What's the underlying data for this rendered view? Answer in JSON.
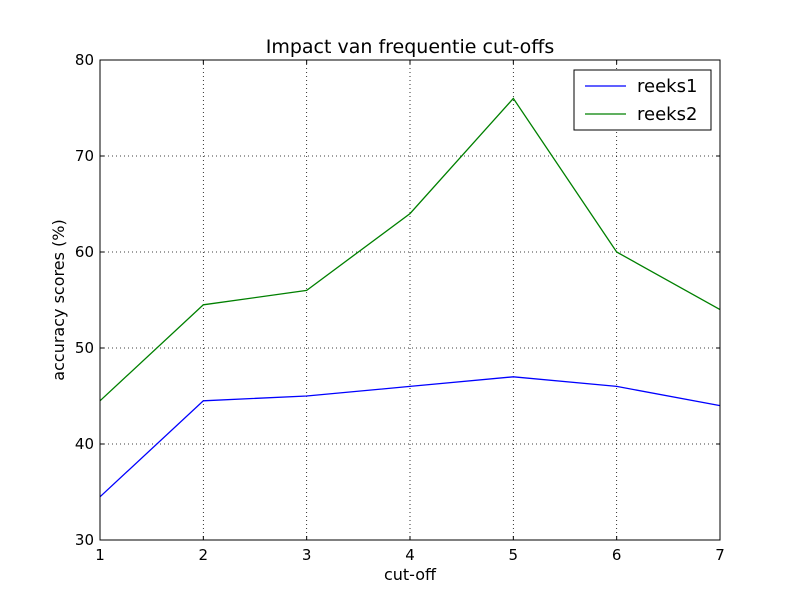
{
  "chart_data": {
    "type": "line",
    "title": "Impact van frequentie cut-offs",
    "xlabel": "cut-off",
    "ylabel": "accuracy scores (%)",
    "x": [
      1,
      2,
      3,
      4,
      5,
      6,
      7
    ],
    "xlim": [
      1,
      7
    ],
    "ylim": [
      30,
      80
    ],
    "xticks": [
      "1",
      "2",
      "3",
      "4",
      "5",
      "6",
      "7"
    ],
    "yticks": [
      "30",
      "40",
      "50",
      "60",
      "70",
      "80"
    ],
    "grid": true,
    "legend_position": "top-right",
    "series": [
      {
        "name": "reeks1",
        "color": "#0000ff",
        "values": [
          34.5,
          44.5,
          45,
          46,
          47,
          46,
          44
        ]
      },
      {
        "name": "reeks2",
        "color": "#008000",
        "values": [
          44.5,
          54.5,
          56,
          64,
          76,
          60,
          54
        ]
      }
    ]
  }
}
